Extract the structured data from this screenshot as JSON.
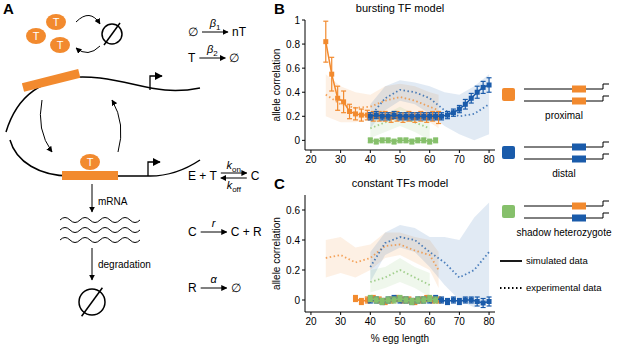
{
  "diagram": {
    "panel": "A",
    "molecule": "T",
    "transcript": "mRNA",
    "decay": "degradation",
    "reactions": [
      {
        "lhs": "∅",
        "rhs": "nT",
        "rate": "β",
        "rate_sub": "1"
      },
      {
        "lhs": "T",
        "rhs": "∅",
        "rate": "β",
        "rate_sub": "2"
      },
      {
        "lhs": "E + T",
        "rhs": "C",
        "rate": "k",
        "rate_sub": "on",
        "reverse_rate": "k",
        "reverse_rate_sub": "off"
      },
      {
        "lhs": "C",
        "rhs": "C + R",
        "rate": "r"
      },
      {
        "lhs": "R",
        "rhs": "∅",
        "rate": "α"
      }
    ]
  },
  "key": {
    "items": [
      {
        "label": "proximal",
        "color": "#F28A2E",
        "colors": [
          "#F28A2E",
          "#F28A2E"
        ]
      },
      {
        "label": "distal",
        "color": "#1A5BAA",
        "colors": [
          "#1A5BAA",
          "#1A5BAA"
        ]
      },
      {
        "label": "shadow heterozygote",
        "color": "#86C06B",
        "colors": [
          "#F28A2E",
          "#1A5BAA"
        ]
      }
    ],
    "line_styles": [
      {
        "label": "simulated data",
        "line_style": "solid"
      },
      {
        "label": "experimental data",
        "line_style": "dotted"
      }
    ]
  },
  "chart_data": [
    {
      "panel": "B",
      "type": "line",
      "title": "bursting TF model",
      "y_label": "allele correlation",
      "xlim": [
        18,
        82
      ],
      "xticks": [
        20,
        30,
        40,
        50,
        60,
        70,
        80
      ],
      "ylim": [
        -0.08,
        1.0
      ],
      "yticks": [
        0,
        0.2,
        0.4,
        0.6,
        0.8,
        1
      ],
      "grid": false,
      "series": [
        {
          "name": "proximal",
          "color": "#F28A2E",
          "type": "line",
          "line_style": "solid",
          "marker": "square",
          "x": [
            25,
            27,
            29,
            31,
            33,
            35,
            37,
            39,
            41,
            43,
            45,
            47,
            49,
            51,
            53,
            55,
            57,
            59,
            61,
            63
          ],
          "values": [
            0.82,
            0.55,
            0.35,
            0.32,
            0.24,
            0.22,
            0.21,
            0.21,
            0.2,
            0.2,
            0.2,
            0.19,
            0.2,
            0.19,
            0.2,
            0.19,
            0.2,
            0.19,
            0.2,
            0.19
          ],
          "errors": [
            0.17,
            0.14,
            0.1,
            0.09,
            0.06,
            0.05,
            0.05,
            0.04,
            0.04,
            0.04,
            0.04,
            0.04,
            0.04,
            0.04,
            0.04,
            0.04,
            0.04,
            0.04,
            0.04,
            0.05
          ]
        },
        {
          "name": "distal",
          "color": "#1A5BAA",
          "type": "line",
          "line_style": "solid",
          "marker": "square",
          "x": [
            40,
            42,
            44,
            46,
            48,
            50,
            52,
            54,
            56,
            58,
            60,
            62,
            64,
            66,
            68,
            70,
            72,
            74,
            76,
            78,
            80
          ],
          "values": [
            0.2,
            0.21,
            0.2,
            0.2,
            0.21,
            0.2,
            0.2,
            0.2,
            0.2,
            0.2,
            0.2,
            0.2,
            0.2,
            0.21,
            0.23,
            0.26,
            0.3,
            0.35,
            0.4,
            0.44,
            0.46
          ],
          "errors": [
            0.03,
            0.03,
            0.03,
            0.03,
            0.03,
            0.03,
            0.03,
            0.03,
            0.03,
            0.03,
            0.03,
            0.03,
            0.03,
            0.03,
            0.03,
            0.03,
            0.04,
            0.04,
            0.05,
            0.05,
            0.06
          ]
        },
        {
          "name": "shadow heterozygote",
          "color": "#86C06B",
          "type": "line",
          "line_style": "solid",
          "marker": "square",
          "x": [
            40,
            42,
            44,
            46,
            48,
            50,
            52,
            54,
            56,
            58,
            60,
            62
          ],
          "values": [
            0,
            -0.01,
            0,
            0,
            -0.01,
            0,
            0,
            -0.01,
            0,
            0,
            -0.01,
            0
          ],
          "errors": [
            0.02,
            0.02,
            0.02,
            0.02,
            0.02,
            0.02,
            0.02,
            0.02,
            0.02,
            0.02,
            0.02,
            0.02
          ]
        },
        {
          "name": "proximal",
          "color": "#F28A2E",
          "type": "line",
          "line_style": "dotted",
          "marker": "none",
          "x": [
            25,
            30,
            35,
            40,
            45,
            50,
            55,
            60,
            63
          ],
          "values": [
            0.38,
            0.3,
            0.27,
            0.28,
            0.33,
            0.36,
            0.33,
            0.28,
            0.25
          ],
          "lower": [
            0.2,
            0.15,
            0.15,
            0.18,
            0.22,
            0.25,
            0.22,
            0.15,
            0.1
          ],
          "upper": [
            0.55,
            0.45,
            0.4,
            0.38,
            0.45,
            0.47,
            0.45,
            0.4,
            0.38
          ]
        },
        {
          "name": "distal",
          "color": "#1A5BAA",
          "type": "line",
          "line_style": "dotted",
          "marker": "none",
          "x": [
            40,
            45,
            50,
            55,
            60,
            65,
            70,
            75,
            80
          ],
          "values": [
            0.2,
            0.35,
            0.42,
            0.4,
            0.35,
            0.25,
            0.2,
            0.22,
            0.3
          ],
          "lower": [
            0.1,
            0.25,
            0.33,
            0.3,
            0.22,
            0.12,
            0.05,
            0.0,
            0.05
          ],
          "upper": [
            0.3,
            0.45,
            0.5,
            0.48,
            0.45,
            0.4,
            0.38,
            0.45,
            0.55
          ]
        },
        {
          "name": "shadow heterozygote",
          "color": "#86C06B",
          "type": "line",
          "line_style": "dotted",
          "marker": "none",
          "x": [
            40,
            45,
            50,
            55,
            60
          ],
          "values": [
            0.1,
            0.15,
            0.2,
            0.15,
            0.1
          ],
          "lower": [
            0.02,
            0.07,
            0.12,
            0.07,
            0.0
          ],
          "upper": [
            0.18,
            0.22,
            0.28,
            0.22,
            0.18
          ]
        }
      ]
    },
    {
      "panel": "C",
      "type": "line",
      "title": "constant TFs model",
      "y_label": "allele correlation",
      "x_label": "% egg length",
      "xlim": [
        18,
        82
      ],
      "xticks": [
        20,
        30,
        40,
        50,
        60,
        70,
        80
      ],
      "ylim": [
        -0.08,
        0.7
      ],
      "yticks": [
        0,
        0.2,
        0.4,
        0.6
      ],
      "grid": false,
      "series": [
        {
          "name": "proximal",
          "color": "#F28A2E",
          "type": "line",
          "line_style": "solid",
          "marker": "square",
          "x": [
            35,
            37,
            39,
            41,
            43,
            45,
            47,
            49,
            51,
            53,
            55,
            57,
            59,
            61,
            63
          ],
          "values": [
            0.01,
            -0.01,
            0,
            0.01,
            0,
            -0.01,
            0,
            0.01,
            0,
            0,
            -0.01,
            0,
            0.01,
            0,
            0
          ],
          "errors": [
            0.02,
            0.02,
            0.02,
            0.02,
            0.02,
            0.02,
            0.02,
            0.02,
            0.02,
            0.02,
            0.02,
            0.02,
            0.02,
            0.02,
            0.02
          ]
        },
        {
          "name": "distal",
          "color": "#1A5BAA",
          "type": "line",
          "line_style": "solid",
          "marker": "square",
          "x": [
            40,
            42,
            44,
            46,
            48,
            50,
            52,
            54,
            56,
            58,
            60,
            62,
            64,
            66,
            68,
            70,
            72,
            74,
            76,
            78,
            80
          ],
          "values": [
            0,
            0,
            -0.01,
            0,
            0.01,
            0,
            0,
            -0.01,
            0,
            0,
            0,
            0.01,
            0,
            -0.01,
            0,
            -0.01,
            0,
            0,
            -0.01,
            -0.02,
            -0.01
          ],
          "errors": [
            0.02,
            0.02,
            0.02,
            0.02,
            0.02,
            0.02,
            0.02,
            0.02,
            0.02,
            0.02,
            0.02,
            0.02,
            0.02,
            0.02,
            0.02,
            0.02,
            0.02,
            0.02,
            0.03,
            0.03,
            0.03
          ]
        },
        {
          "name": "shadow heterozygote",
          "color": "#86C06B",
          "type": "line",
          "line_style": "solid",
          "marker": "square",
          "x": [
            40,
            42,
            44,
            46,
            48,
            50,
            52,
            54,
            56,
            58,
            60,
            62
          ],
          "values": [
            0.01,
            0,
            -0.01,
            0,
            0,
            0.01,
            0,
            -0.01,
            0,
            0,
            0.01,
            0
          ],
          "errors": [
            0.02,
            0.02,
            0.02,
            0.02,
            0.02,
            0.02,
            0.02,
            0.02,
            0.02,
            0.02,
            0.02,
            0.02
          ]
        },
        {
          "name": "proximal",
          "color": "#F28A2E",
          "type": "line",
          "line_style": "dotted",
          "marker": "none",
          "x": [
            25,
            30,
            35,
            40,
            45,
            50,
            55,
            60,
            63
          ],
          "values": [
            0.28,
            0.3,
            0.25,
            0.28,
            0.36,
            0.37,
            0.33,
            0.3,
            0.2
          ],
          "lower": [
            0.15,
            0.18,
            0.15,
            0.2,
            0.28,
            0.3,
            0.25,
            0.2,
            0.08
          ],
          "upper": [
            0.4,
            0.42,
            0.35,
            0.37,
            0.45,
            0.45,
            0.42,
            0.4,
            0.32
          ]
        },
        {
          "name": "distal",
          "color": "#1A5BAA",
          "type": "line",
          "line_style": "dotted",
          "marker": "none",
          "x": [
            40,
            45,
            50,
            55,
            60,
            65,
            70,
            75,
            80
          ],
          "values": [
            0.22,
            0.38,
            0.42,
            0.4,
            0.32,
            0.25,
            0.15,
            0.2,
            0.32
          ],
          "lower": [
            0.12,
            0.3,
            0.35,
            0.32,
            0.22,
            0.1,
            0.0,
            -0.05,
            0.0
          ],
          "upper": [
            0.32,
            0.45,
            0.5,
            0.48,
            0.42,
            0.42,
            0.4,
            0.55,
            0.65
          ]
        },
        {
          "name": "shadow heterozygote",
          "color": "#86C06B",
          "type": "line",
          "line_style": "dotted",
          "marker": "none",
          "x": [
            40,
            45,
            50,
            55,
            60
          ],
          "values": [
            0.12,
            0.15,
            0.2,
            0.15,
            0.1
          ],
          "lower": [
            0.05,
            0.08,
            0.12,
            0.08,
            0.02
          ],
          "upper": [
            0.2,
            0.22,
            0.28,
            0.22,
            0.18
          ]
        }
      ]
    }
  ]
}
